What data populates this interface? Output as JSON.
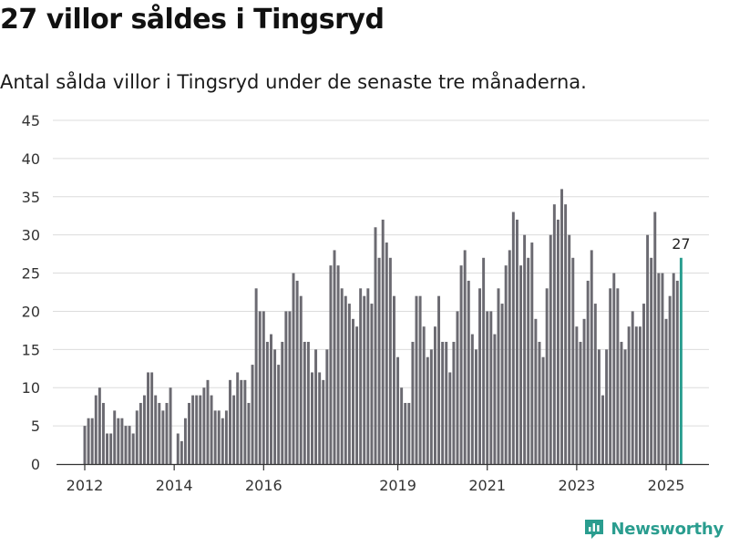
{
  "header": {
    "title": "27 villor såldes i Tingsryd",
    "subtitle": "Antal sålda villor i Tingsryd under de senaste tre månaderna."
  },
  "brand": {
    "name": "Newsworthy",
    "icon": "newsworthy-chart-logo-icon",
    "color": "#2a9d8f"
  },
  "chart_data": {
    "type": "bar",
    "title": "27 villor såldes i Tingsryd",
    "subtitle": "Antal sålda villor i Tingsryd under de senaste tre månaderna.",
    "xlabel": "",
    "ylabel": "",
    "ylim": [
      0,
      45
    ],
    "yticks": [
      0,
      5,
      10,
      15,
      20,
      25,
      30,
      35,
      40,
      45
    ],
    "xticks": [
      "2012",
      "2014",
      "2016",
      "2019",
      "2021",
      "2023",
      "2025"
    ],
    "grid": true,
    "legend": "none",
    "bar_color": "#6b6a71",
    "highlight_color": "#2a9d8f",
    "highlight_label": "27",
    "values": [
      5,
      6,
      6,
      9,
      10,
      8,
      4,
      4,
      7,
      6,
      6,
      5,
      5,
      4,
      7,
      8,
      9,
      12,
      12,
      9,
      8,
      7,
      8,
      10,
      0,
      4,
      3,
      6,
      8,
      9,
      9,
      9,
      10,
      11,
      9,
      7,
      7,
      6,
      7,
      11,
      9,
      12,
      11,
      11,
      8,
      13,
      23,
      20,
      20,
      16,
      17,
      15,
      13,
      16,
      20,
      20,
      25,
      24,
      22,
      16,
      16,
      12,
      15,
      12,
      11,
      15,
      26,
      28,
      26,
      23,
      22,
      21,
      19,
      18,
      23,
      22,
      23,
      21,
      31,
      27,
      32,
      29,
      27,
      22,
      14,
      10,
      8,
      8,
      16,
      22,
      22,
      18,
      14,
      15,
      18,
      22,
      16,
      16,
      12,
      16,
      20,
      26,
      28,
      24,
      17,
      15,
      23,
      27,
      20,
      20,
      17,
      23,
      21,
      26,
      28,
      33,
      32,
      26,
      30,
      27,
      29,
      19,
      16,
      14,
      23,
      30,
      34,
      32,
      36,
      34,
      30,
      27,
      18,
      16,
      19,
      24,
      28,
      21,
      15,
      9,
      15,
      23,
      25,
      23,
      16,
      15,
      18,
      20,
      18,
      18,
      21,
      30,
      27,
      33,
      25,
      25,
      19,
      22,
      25,
      24,
      27
    ]
  }
}
